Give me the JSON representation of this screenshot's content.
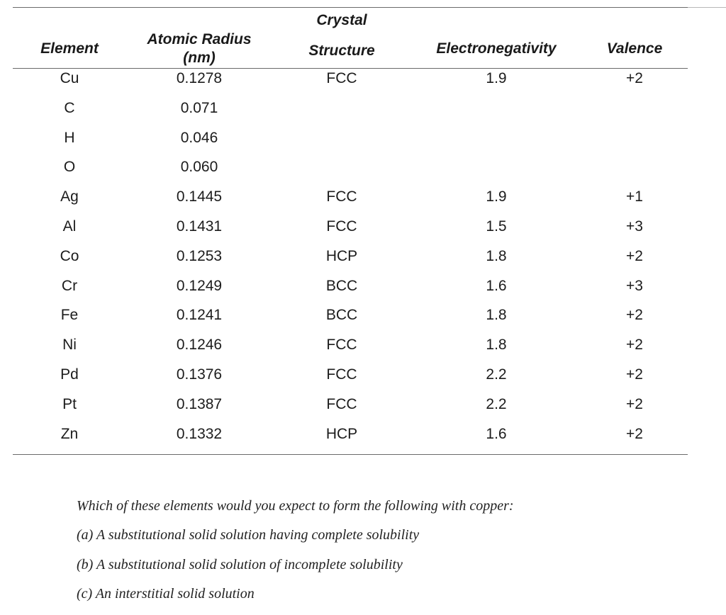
{
  "table": {
    "headers": {
      "element": "Element",
      "atomic_radius_line1": "Atomic Radius",
      "atomic_radius_line2": "(nm)",
      "crystal_line1": "Crystal",
      "crystal_line2": "Structure",
      "electronegativity": "Electronegativity",
      "valence": "Valence"
    },
    "rows": [
      {
        "element": "Cu",
        "radius": "0.1278",
        "structure": "FCC",
        "electronegativity": "1.9",
        "valence": "+2"
      },
      {
        "element": "C",
        "radius": "0.071",
        "structure": "",
        "electronegativity": "",
        "valence": ""
      },
      {
        "element": "H",
        "radius": "0.046",
        "structure": "",
        "electronegativity": "",
        "valence": ""
      },
      {
        "element": "O",
        "radius": "0.060",
        "structure": "",
        "electronegativity": "",
        "valence": ""
      },
      {
        "element": "Ag",
        "radius": "0.1445",
        "structure": "FCC",
        "electronegativity": "1.9",
        "valence": "+1"
      },
      {
        "element": "Al",
        "radius": "0.1431",
        "structure": "FCC",
        "electronegativity": "1.5",
        "valence": "+3"
      },
      {
        "element": "Co",
        "radius": "0.1253",
        "structure": "HCP",
        "electronegativity": "1.8",
        "valence": "+2"
      },
      {
        "element": "Cr",
        "radius": "0.1249",
        "structure": "BCC",
        "electronegativity": "1.6",
        "valence": "+3"
      },
      {
        "element": "Fe",
        "radius": "0.1241",
        "structure": "BCC",
        "electronegativity": "1.8",
        "valence": "+2"
      },
      {
        "element": "Ni",
        "radius": "0.1246",
        "structure": "FCC",
        "electronegativity": "1.8",
        "valence": "+2"
      },
      {
        "element": "Pd",
        "radius": "0.1376",
        "structure": "FCC",
        "electronegativity": "2.2",
        "valence": "+2"
      },
      {
        "element": "Pt",
        "radius": "0.1387",
        "structure": "FCC",
        "electronegativity": "2.2",
        "valence": "+2"
      },
      {
        "element": "Zn",
        "radius": "0.1332",
        "structure": "HCP",
        "electronegativity": "1.6",
        "valence": "+2"
      }
    ]
  },
  "question": {
    "prompt": "Which of these elements would you expect to form the following with copper:",
    "part_a": "(a) A substitutional solid solution having complete solubility",
    "part_b": "(b) A substitutional solid solution of incomplete solubility",
    "part_c": "(c) An interstitial solid solution"
  }
}
